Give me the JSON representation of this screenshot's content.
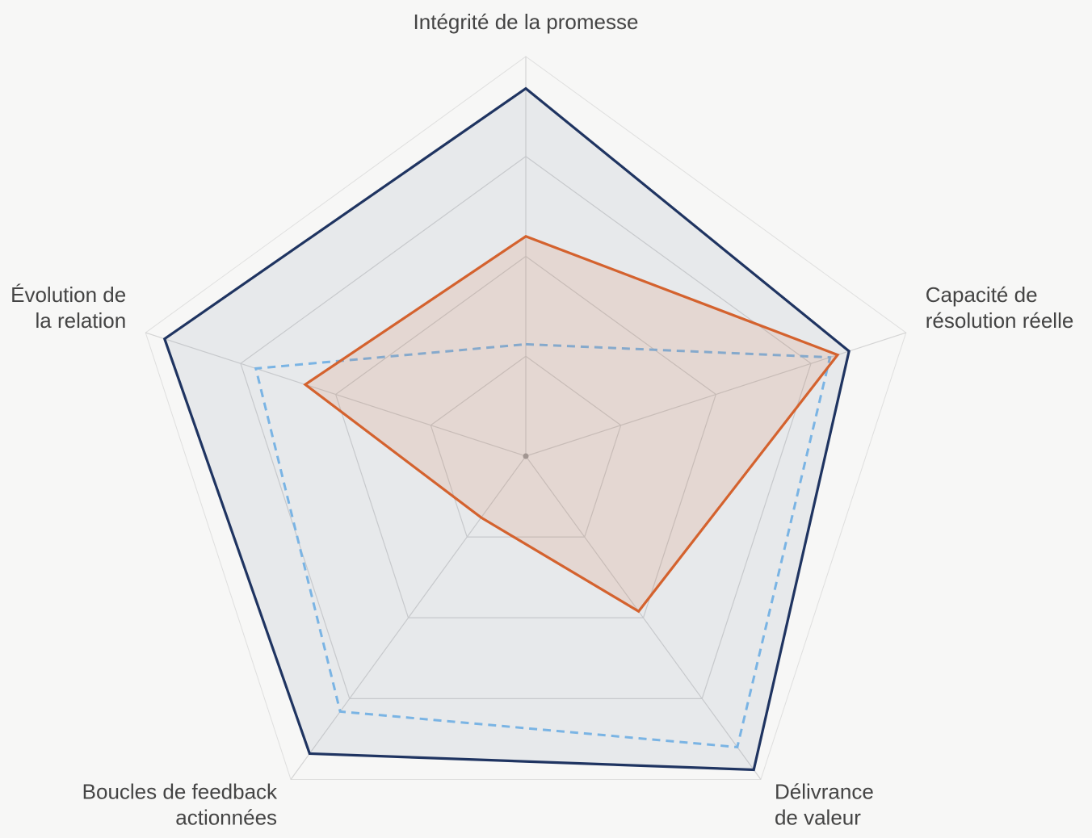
{
  "chart_data": {
    "type": "radar",
    "axes": [
      {
        "lines": [
          "Intégrité de la promesse"
        ]
      },
      {
        "lines": [
          "Capacité de",
          "résolution réelle"
        ]
      },
      {
        "lines": [
          "Délivrance",
          "de valeur"
        ]
      },
      {
        "lines": [
          "Boucles de feedback",
          "actionnées"
        ]
      },
      {
        "lines": [
          "Évolution de",
          "la relation"
        ]
      }
    ],
    "range": [
      0,
      100
    ],
    "rings": 4,
    "series": [
      {
        "values": [
          92,
          85,
          97,
          92,
          95
        ],
        "color": "#1f3461",
        "fill": "#1f3461",
        "fill_opacity": 0.07,
        "dashed": false
      },
      {
        "values": [
          28,
          80,
          90,
          79,
          71
        ],
        "color": "#7ab4e4",
        "fill": "none",
        "fill_opacity": 0,
        "dashed": true
      },
      {
        "values": [
          55,
          82,
          48,
          19,
          58
        ],
        "color": "#d4622e",
        "fill": "#d4622e",
        "fill_opacity": 0.13,
        "dashed": false
      }
    ],
    "colors": {
      "grid": "#d4d4d4",
      "background": "#f7f7f6",
      "center": "#a6a6a6"
    }
  }
}
